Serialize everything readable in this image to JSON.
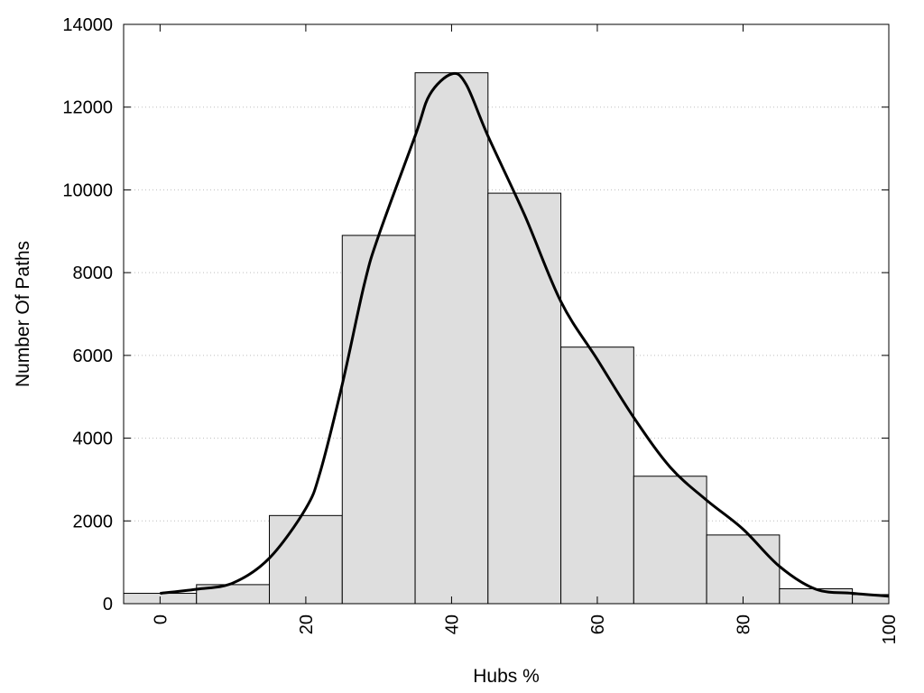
{
  "chart_data": {
    "type": "bar",
    "title": "",
    "xlabel": "Hubs %",
    "ylabel": "Number Of Paths",
    "xlim": [
      -5,
      100
    ],
    "ylim": [
      0,
      14000
    ],
    "x_ticks": [
      0,
      20,
      40,
      60,
      80,
      100
    ],
    "y_ticks": [
      0,
      2000,
      4000,
      6000,
      8000,
      10000,
      12000,
      14000
    ],
    "grid": "horizontal dotted",
    "bin_width": 10,
    "bins": [
      {
        "center": 0,
        "value": 250
      },
      {
        "center": 10,
        "value": 460
      },
      {
        "center": 20,
        "value": 2130
      },
      {
        "center": 30,
        "value": 8900
      },
      {
        "center": 40,
        "value": 12830
      },
      {
        "center": 50,
        "value": 9920
      },
      {
        "center": 60,
        "value": 6200
      },
      {
        "center": 70,
        "value": 3080
      },
      {
        "center": 80,
        "value": 1660
      },
      {
        "center": 90,
        "value": 360
      },
      {
        "center": 100,
        "value": 220
      }
    ],
    "density_curve": {
      "x": [
        0,
        5,
        10,
        15,
        20,
        22,
        25,
        28,
        30,
        35,
        37,
        40,
        42,
        45,
        50,
        55,
        60,
        65,
        70,
        75,
        80,
        85,
        90,
        95,
        100
      ],
      "y": [
        250,
        350,
        500,
        1100,
        2300,
        3200,
        5300,
        7700,
        8900,
        11300,
        12300,
        12800,
        12550,
        11300,
        9400,
        7300,
        5900,
        4500,
        3300,
        2500,
        1800,
        900,
        350,
        250,
        180
      ]
    },
    "colors": {
      "bar_fill": "#dedede",
      "bar_stroke": "#000000",
      "curve": "#000000",
      "grid": "#bdbdbd"
    }
  }
}
